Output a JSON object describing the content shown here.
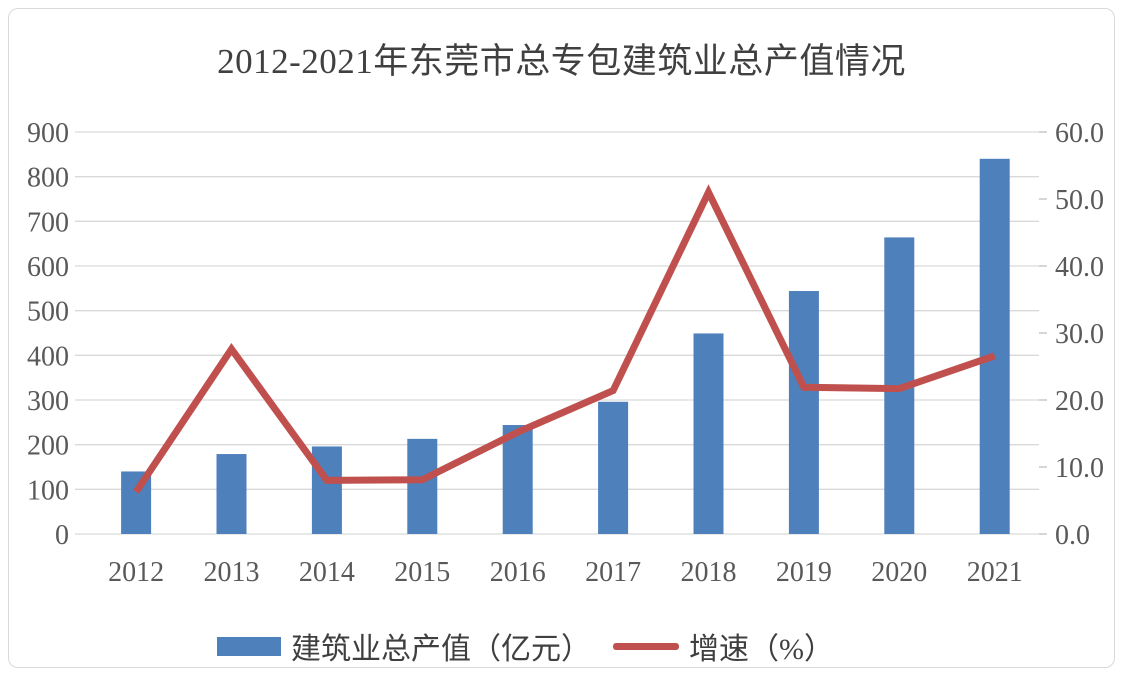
{
  "window": {
    "background": "#ffffff",
    "card_border_color": "#d9d9d9"
  },
  "chart_data": {
    "type": "bar",
    "subtype": "combo-bar-line-dual-axis",
    "title": "2012-2021年东莞市总专包建筑业总产值情况",
    "categories": [
      "2012",
      "2013",
      "2014",
      "2015",
      "2016",
      "2017",
      "2018",
      "2019",
      "2020",
      "2021"
    ],
    "series": [
      {
        "name": "建筑业总产值（亿元）",
        "type": "bar",
        "axis": "left",
        "color": "#4e80bc",
        "values": [
          140,
          179,
          196,
          213,
          244,
          296,
          449,
          544,
          664,
          840
        ]
      },
      {
        "name": "增速（%）",
        "type": "line",
        "axis": "right",
        "color": "#c0504d",
        "values": [
          6.3,
          27.6,
          8.0,
          8.1,
          15.2,
          21.4,
          51.0,
          21.9,
          21.7,
          26.6
        ]
      }
    ],
    "left_axis": {
      "min": 0,
      "max": 900,
      "step": 100,
      "tick_labels": [
        "0",
        "100",
        "200",
        "300",
        "400",
        "500",
        "600",
        "700",
        "800",
        "900"
      ]
    },
    "right_axis": {
      "min": 0,
      "max": 60,
      "step": 10,
      "tick_labels": [
        "0.0",
        "10.0",
        "20.0",
        "30.0",
        "40.0",
        "50.0",
        "60.0"
      ]
    },
    "grid": true,
    "legend_position": "bottom",
    "colors": {
      "gridline": "#d9d9d9",
      "tick_mark": "#bfbfbf",
      "tick_text": "#595959",
      "title_text": "#404040",
      "legend_text": "#3f3f3f"
    }
  }
}
